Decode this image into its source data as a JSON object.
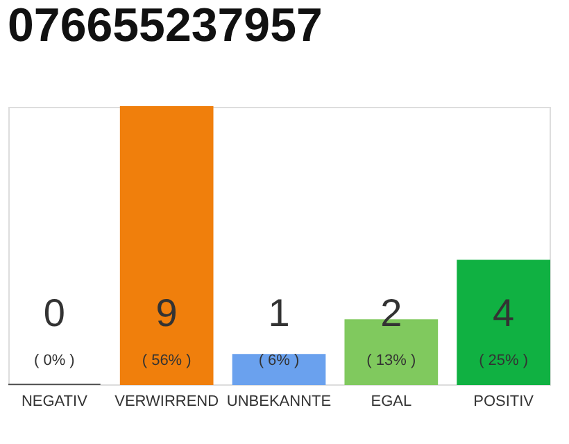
{
  "chart_data": {
    "type": "bar",
    "title": "076655237957",
    "categories": [
      "NEGATIV",
      "VERWIRREND",
      "UNBEKANNTE",
      "EGAL",
      "POSITIV"
    ],
    "values": [
      0,
      56,
      6,
      13,
      25
    ],
    "colors": [
      "#555555",
      "#f07f0c",
      "#6aa1ee",
      "#80c95e",
      "#10b142"
    ],
    "value_labels": [
      "( 0% )",
      "( 56% )",
      "( 6% )",
      "( 13% )",
      "( 25% )"
    ],
    "annotations": [
      "0",
      "9",
      "1",
      "2",
      "4"
    ],
    "tick_labels": "x",
    "grid": false
  }
}
